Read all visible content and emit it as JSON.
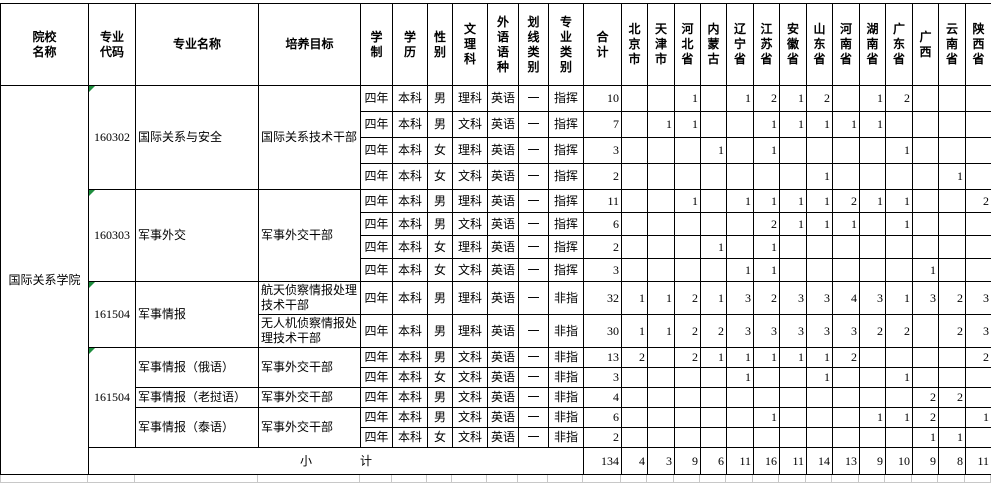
{
  "header": {
    "institution_col": "院校\n名称",
    "code_col": "专业\n代码",
    "major_col": "专业名称",
    "objective_col": "培养目标",
    "duration_col": "学制",
    "degree_col": "学历",
    "gender_col": "性别",
    "track_col": "文理科",
    "language_col": "外语语种",
    "line_col": "划线类别",
    "category_col": "专业类别",
    "total_col": "合计",
    "provinces": [
      "北京市",
      "天津市",
      "河北省",
      "内蒙古",
      "辽宁省",
      "江苏省",
      "安徽省",
      "山东省",
      "河南省",
      "湖南省",
      "广东省",
      "广西",
      "云南省",
      "陕西省"
    ]
  },
  "institution": "国际关系学院",
  "groups": {
    "g1": {
      "code": "160302",
      "major": "国际关系与安全",
      "objective": "国际关系技术干部"
    },
    "g2": {
      "code": "160303",
      "major": "军事外交",
      "objective": "军事外交干部"
    },
    "g3": {
      "code": "161504",
      "major": "军事情报",
      "objective1": "航天侦察情报处理技术干部",
      "objective2": "无人机侦察情报处理技术干部"
    },
    "g4": {
      "code": "161504",
      "major1": "军事情报（俄语）",
      "major2": "军事情报（老挝语）",
      "major3": "军事情报（泰语）",
      "objective": "军事外交干部"
    }
  },
  "rows": [
    {
      "duration": "四年",
      "degree": "本科",
      "gender": "男",
      "track": "理科",
      "language": "英语",
      "line": "一",
      "category": "指挥",
      "total": "10",
      "prov": [
        "",
        "",
        "1",
        "",
        "1",
        "2",
        "1",
        "2",
        "",
        "1",
        "2",
        "",
        "",
        ""
      ]
    },
    {
      "duration": "四年",
      "degree": "本科",
      "gender": "男",
      "track": "文科",
      "language": "英语",
      "line": "一",
      "category": "指挥",
      "total": "7",
      "prov": [
        "",
        "1",
        "1",
        "",
        "",
        "1",
        "1",
        "1",
        "1",
        "1",
        "",
        "",
        "",
        ""
      ]
    },
    {
      "duration": "四年",
      "degree": "本科",
      "gender": "女",
      "track": "理科",
      "language": "英语",
      "line": "一",
      "category": "指挥",
      "total": "3",
      "prov": [
        "",
        "",
        "",
        "1",
        "",
        "1",
        "",
        "",
        "",
        "",
        "1",
        "",
        "",
        ""
      ]
    },
    {
      "duration": "四年",
      "degree": "本科",
      "gender": "女",
      "track": "文科",
      "language": "英语",
      "line": "一",
      "category": "指挥",
      "total": "2",
      "prov": [
        "",
        "",
        "",
        "",
        "",
        "",
        "",
        "1",
        "",
        "",
        "",
        "",
        "1",
        ""
      ]
    },
    {
      "duration": "四年",
      "degree": "本科",
      "gender": "男",
      "track": "理科",
      "language": "英语",
      "line": "一",
      "category": "指挥",
      "total": "11",
      "prov": [
        "",
        "",
        "1",
        "",
        "1",
        "1",
        "1",
        "1",
        "2",
        "1",
        "1",
        "",
        "",
        "2"
      ]
    },
    {
      "duration": "四年",
      "degree": "本科",
      "gender": "男",
      "track": "文科",
      "language": "英语",
      "line": "一",
      "category": "指挥",
      "total": "6",
      "prov": [
        "",
        "",
        "",
        "",
        "",
        "2",
        "1",
        "1",
        "1",
        "",
        "1",
        "",
        "",
        ""
      ]
    },
    {
      "duration": "四年",
      "degree": "本科",
      "gender": "女",
      "track": "理科",
      "language": "英语",
      "line": "一",
      "category": "指挥",
      "total": "2",
      "prov": [
        "",
        "",
        "",
        "1",
        "",
        "1",
        "",
        "",
        "",
        "",
        "",
        "",
        "",
        ""
      ]
    },
    {
      "duration": "四年",
      "degree": "本科",
      "gender": "女",
      "track": "文科",
      "language": "英语",
      "line": "一",
      "category": "指挥",
      "total": "3",
      "prov": [
        "",
        "",
        "",
        "",
        "1",
        "1",
        "",
        "",
        "",
        "",
        "",
        "1",
        "",
        ""
      ]
    },
    {
      "duration": "四年",
      "degree": "本科",
      "gender": "男",
      "track": "理科",
      "language": "英语",
      "line": "一",
      "category": "非指",
      "total": "32",
      "prov": [
        "1",
        "1",
        "2",
        "1",
        "3",
        "2",
        "3",
        "3",
        "4",
        "3",
        "1",
        "3",
        "2",
        "3"
      ]
    },
    {
      "duration": "四年",
      "degree": "本科",
      "gender": "男",
      "track": "理科",
      "language": "英语",
      "line": "一",
      "category": "非指",
      "total": "30",
      "prov": [
        "1",
        "1",
        "2",
        "2",
        "3",
        "3",
        "3",
        "3",
        "3",
        "2",
        "2",
        "",
        "2",
        "3"
      ]
    },
    {
      "duration": "四年",
      "degree": "本科",
      "gender": "男",
      "track": "文科",
      "language": "英语",
      "line": "一",
      "category": "非指",
      "total": "13",
      "prov": [
        "2",
        "",
        "2",
        "1",
        "1",
        "1",
        "1",
        "1",
        "2",
        "",
        "",
        "",
        "",
        "2"
      ]
    },
    {
      "duration": "四年",
      "degree": "本科",
      "gender": "女",
      "track": "文科",
      "language": "英语",
      "line": "一",
      "category": "非指",
      "total": "3",
      "prov": [
        "",
        "",
        "",
        "",
        "1",
        "",
        "",
        "1",
        "",
        "",
        "1",
        "",
        "",
        ""
      ]
    },
    {
      "duration": "四年",
      "degree": "本科",
      "gender": "男",
      "track": "文科",
      "language": "英语",
      "line": "一",
      "category": "非指",
      "total": "4",
      "prov": [
        "",
        "",
        "",
        "",
        "",
        "",
        "",
        "",
        "",
        "",
        "",
        "2",
        "2",
        ""
      ]
    },
    {
      "duration": "四年",
      "degree": "本科",
      "gender": "男",
      "track": "文科",
      "language": "英语",
      "line": "一",
      "category": "非指",
      "total": "6",
      "prov": [
        "",
        "",
        "",
        "",
        "",
        "1",
        "",
        "",
        "",
        "1",
        "1",
        "2",
        "",
        "1"
      ]
    },
    {
      "duration": "四年",
      "degree": "本科",
      "gender": "女",
      "track": "文科",
      "language": "英语",
      "line": "一",
      "category": "非指",
      "total": "2",
      "prov": [
        "",
        "",
        "",
        "",
        "",
        "",
        "",
        "",
        "",
        "",
        "",
        "1",
        "1",
        ""
      ]
    }
  ],
  "subtotal": {
    "label": "小　　　　计",
    "total": "134",
    "prov": [
      "4",
      "3",
      "9",
      "6",
      "11",
      "16",
      "11",
      "14",
      "13",
      "9",
      "10",
      "9",
      "8",
      "11"
    ]
  },
  "colors": {
    "triangle_green": "#1e8e3e",
    "grid_black": "#000000",
    "grid_grey": "#c8c8c8"
  }
}
